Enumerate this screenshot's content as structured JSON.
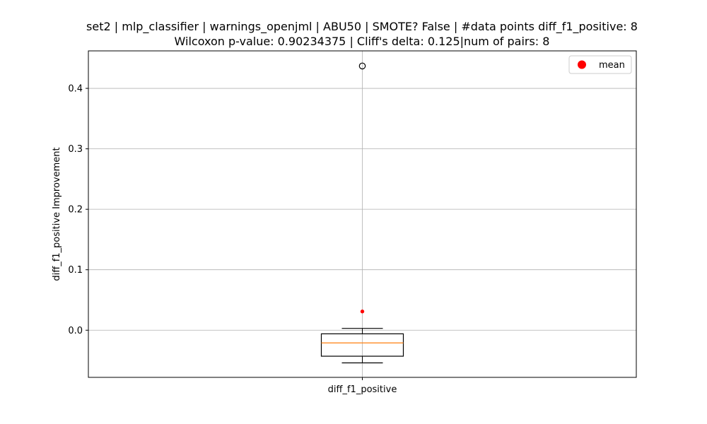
{
  "chart_data": {
    "type": "box",
    "title_line1": "set2 | mlp_classifier | warnings_openjml | ABU50 | SMOTE? False | #data points diff_f1_positive: 8",
    "title_line2": "Wilcoxon p-value: 0.90234375 | Cliff's delta: 0.125|num of pairs: 8",
    "xlabel": "",
    "ylabel": "diff_f1_positive Improvement",
    "categories": [
      "diff_f1_positive"
    ],
    "ylim": [
      -0.078,
      0.462
    ],
    "yticks": [
      0.0,
      0.1,
      0.2,
      0.3,
      0.4
    ],
    "ytick_labels": [
      "0.0",
      "0.1",
      "0.2",
      "0.3",
      "0.4"
    ],
    "grid": true,
    "legend_position": "top-right",
    "legend": [
      {
        "label": "mean",
        "color": "#ff0000"
      }
    ],
    "boxes": [
      {
        "name": "diff_f1_positive",
        "whisker_low": -0.054,
        "q1": -0.043,
        "median": -0.021,
        "q3": -0.006,
        "whisker_high": 0.003,
        "fliers": [
          0.437
        ],
        "mean": 0.031
      }
    ],
    "colors": {
      "median": "#ff7f0e",
      "mean": "#ff0000",
      "box": "#000000",
      "grid": "#b0b0b0"
    }
  }
}
